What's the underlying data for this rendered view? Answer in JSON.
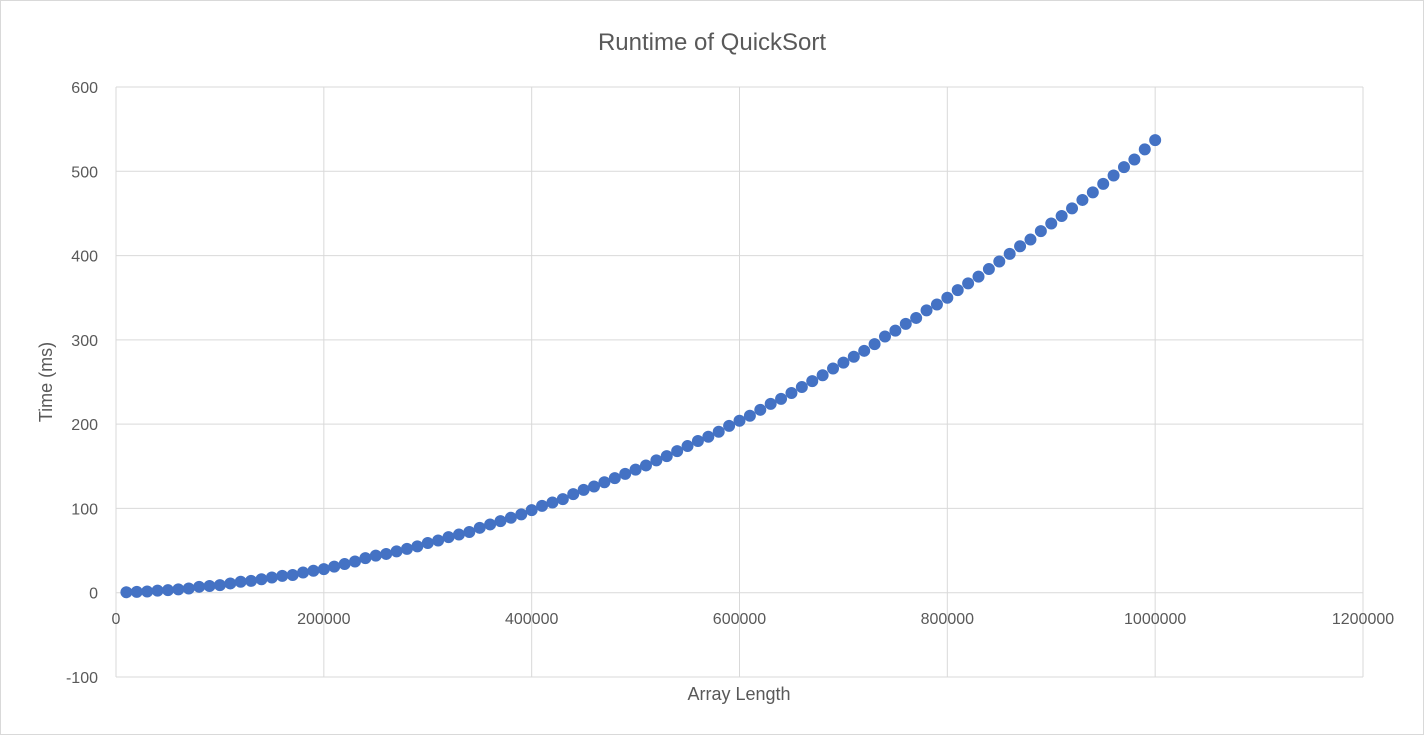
{
  "chart_data": {
    "type": "scatter",
    "title": "Runtime of QuickSort",
    "xlabel": "Array Length",
    "ylabel": "Time (ms)",
    "xlim": [
      0,
      1200000
    ],
    "ylim": [
      -100,
      600
    ],
    "x_ticks": [
      0,
      200000,
      400000,
      600000,
      800000,
      1000000,
      1200000
    ],
    "y_ticks": [
      -100,
      0,
      100,
      200,
      300,
      400,
      500,
      600
    ],
    "x_tick_labels": [
      "0",
      "200000",
      "400000",
      "600000",
      "800000",
      "1000000",
      "1200000"
    ],
    "y_tick_labels": [
      "-100",
      "0",
      "100",
      "200",
      "300",
      "400",
      "500",
      "600"
    ],
    "grid": true,
    "legend": "none",
    "marker_color": "#4472c4",
    "series": [
      {
        "x": [
          10000,
          20000,
          30000,
          40000,
          50000,
          60000,
          70000,
          80000,
          90000,
          100000,
          110000,
          120000,
          130000,
          140000,
          150000,
          160000,
          170000,
          180000,
          190000,
          200000,
          210000,
          220000,
          230000,
          240000,
          250000,
          260000,
          270000,
          280000,
          290000,
          300000,
          310000,
          320000,
          330000,
          340000,
          350000,
          360000,
          370000,
          380000,
          390000,
          400000,
          410000,
          420000,
          430000,
          440000,
          450000,
          460000,
          470000,
          480000,
          490000,
          500000,
          510000,
          520000,
          530000,
          540000,
          550000,
          560000,
          570000,
          580000,
          590000,
          600000,
          610000,
          620000,
          630000,
          640000,
          650000,
          660000,
          670000,
          680000,
          690000,
          700000,
          710000,
          720000,
          730000,
          740000,
          750000,
          760000,
          770000,
          780000,
          790000,
          800000,
          810000,
          820000,
          830000,
          840000,
          850000,
          860000,
          870000,
          880000,
          890000,
          900000,
          910000,
          920000,
          930000,
          940000,
          950000,
          960000,
          970000,
          980000,
          990000,
          1000000
        ],
        "y": [
          0.5,
          1,
          1.5,
          2.5,
          3,
          4,
          5,
          7,
          8,
          9,
          11,
          13,
          14,
          16,
          18,
          20,
          21,
          24,
          26,
          28,
          31,
          34,
          37,
          41,
          44,
          46,
          49,
          52,
          55,
          59,
          62,
          66,
          69,
          72,
          77,
          81,
          85,
          89,
          93,
          98,
          103,
          107,
          111,
          117,
          122,
          126,
          131,
          136,
          141,
          146,
          151,
          157,
          162,
          168,
          174,
          180,
          185,
          191,
          198,
          204,
          210,
          217,
          224,
          230,
          237,
          244,
          251,
          258,
          266,
          273,
          280,
          287,
          295,
          304,
          311,
          319,
          326,
          335,
          342,
          350,
          359,
          367,
          375,
          384,
          393,
          402,
          411,
          419,
          429,
          438,
          447,
          456,
          466,
          475,
          485,
          495,
          505,
          514,
          526,
          537
        ]
      }
    ]
  }
}
